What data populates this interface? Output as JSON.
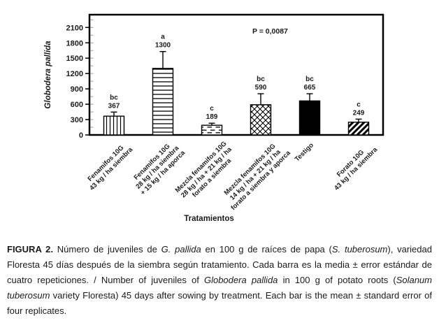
{
  "chart_data": {
    "type": "bar",
    "title": "",
    "ylabel": "Globodera pallida",
    "xlabel": "Tratamientos",
    "annotation": "P = 0,0087",
    "ylim": [
      0,
      2350
    ],
    "yticks": [
      0,
      300,
      600,
      900,
      1200,
      1500,
      1800,
      2100
    ],
    "minor_tick_step": 150,
    "grid": false,
    "legend": false,
    "categories": [
      {
        "lines": [
          "Fenamifos 10G",
          "43 kg / ha siembra"
        ]
      },
      {
        "lines": [
          "Fenamifos 10G",
          "28 kg / ha siembra",
          "+ 15 kg / ha aporca"
        ]
      },
      {
        "lines": [
          "Mezcla fenamifos 10G",
          "28 kg / ha + 21 kg / ha",
          "forato a siembra"
        ]
      },
      {
        "lines": [
          "Mezcla fenamifos 10G",
          "14 kg / ha + 21 kg / ha",
          "forato a siembra y aporca"
        ]
      },
      {
        "lines": [
          "Testigo"
        ]
      },
      {
        "lines": [
          "Forato 10G",
          "43 kg / ha siembra"
        ]
      }
    ],
    "series": [
      {
        "name": "Juveniles de G. pallida en 100 g de raíces",
        "values": [
          367,
          1300,
          189,
          590,
          665,
          249
        ],
        "std_errors": [
          80,
          330,
          40,
          215,
          140,
          60
        ],
        "sig_letters": [
          "bc",
          "a",
          "c",
          "bc",
          "bc",
          "c"
        ],
        "bar_patterns": [
          "vertical-lines",
          "horizontal-lines",
          "dashed-lines",
          "diamond-crosshatch",
          "solid-black",
          "diagonal-stripes"
        ]
      }
    ],
    "colors": {
      "bar_outline": "#000000",
      "solid_fill": "#000000",
      "text": "#1a1a1a",
      "minor_tick": "#9a9a9a"
    }
  },
  "caption": {
    "segments": [
      {
        "text": "FIGURA 2.",
        "bold": true
      },
      {
        "text": " Número de juveniles de "
      },
      {
        "text": "G. pallida",
        "italic": true
      },
      {
        "text": " en 100 g de raíces de papa ("
      },
      {
        "text": "S. tuberosum",
        "italic": true
      },
      {
        "text": "), variedad Floresta 45 días después de la siembra según tratamiento. Cada barra es la media ± error estándar de cuatro repeticiones. / Number of juveniles of "
      },
      {
        "text": "Globodera pallida",
        "italic": true
      },
      {
        "text": " in 100 g of potato roots ("
      },
      {
        "text": "Solanum tuberosum",
        "italic": true
      },
      {
        "text": " variety Floresta) 45 days after sowing by treatment. Each bar is the mean ± standard error of four replicates."
      }
    ]
  }
}
